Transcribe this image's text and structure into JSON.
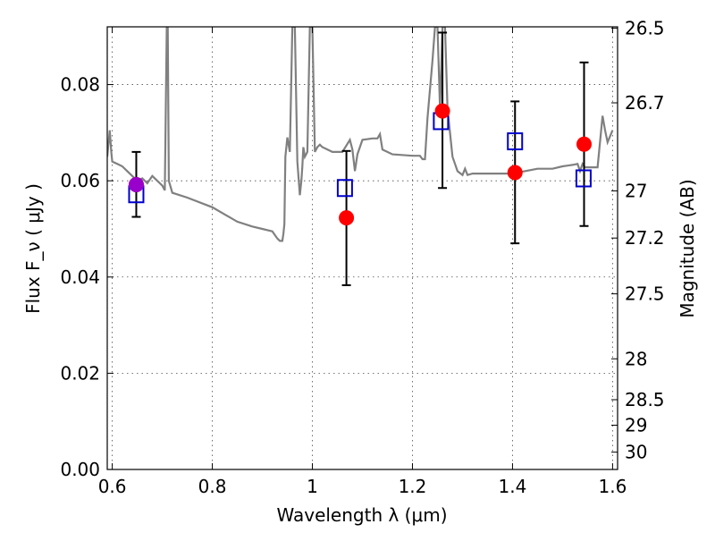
{
  "chart_data": {
    "type": "scatter",
    "title": "",
    "xlabel": "Wavelength  λ (μm)",
    "ylabel": "Flux  F_ν  ( μJy )",
    "ylabel_right": "Magnitude (AB)",
    "xlim": [
      0.59,
      1.61
    ],
    "ylim": [
      0.0,
      0.092
    ],
    "grid": true,
    "xticks": [
      0.6,
      0.8,
      1.0,
      1.2,
      1.4,
      1.6
    ],
    "xtick_labels": [
      "0.6",
      "0.8",
      "1",
      "1.2",
      "1.4",
      "1.6"
    ],
    "yticks": [
      0.0,
      0.02,
      0.04,
      0.06,
      0.08
    ],
    "ytick_labels": [
      "0.00",
      "0.02",
      "0.04",
      "0.06",
      "0.08"
    ],
    "right_ticks": [
      {
        "flux": 0.0917,
        "label": "26.5"
      },
      {
        "flux": 0.0762,
        "label": "26.7"
      },
      {
        "flux": 0.0579,
        "label": "27"
      },
      {
        "flux": 0.0481,
        "label": "27.2"
      },
      {
        "flux": 0.0365,
        "label": "27.5"
      },
      {
        "flux": 0.023,
        "label": "28"
      },
      {
        "flux": 0.0145,
        "label": "28.5"
      },
      {
        "flux": 0.0092,
        "label": "29"
      },
      {
        "flux": 0.0036,
        "label": "30"
      }
    ],
    "model_spectrum": {
      "color": "#808080",
      "x": [
        0.59,
        0.595,
        0.598,
        0.6,
        0.61,
        0.62,
        0.63,
        0.64,
        0.65,
        0.66,
        0.67,
        0.68,
        0.69,
        0.7,
        0.705,
        0.709,
        0.711,
        0.713,
        0.72,
        0.75,
        0.8,
        0.85,
        0.88,
        0.9,
        0.92,
        0.93,
        0.935,
        0.94,
        0.942,
        0.944,
        0.946,
        0.95,
        0.955,
        0.96,
        0.965,
        0.97,
        0.975,
        0.978,
        0.98,
        0.982,
        0.985,
        0.99,
        0.995,
        1.0,
        1.005,
        1.01,
        1.015,
        1.02,
        1.04,
        1.06,
        1.075,
        1.08,
        1.085,
        1.09,
        1.1,
        1.12,
        1.13,
        1.135,
        1.14,
        1.16,
        1.2,
        1.215,
        1.22,
        1.225,
        1.23,
        1.24,
        1.245,
        1.25,
        1.255,
        1.26,
        1.265,
        1.27,
        1.28,
        1.29,
        1.3,
        1.305,
        1.31,
        1.32,
        1.35,
        1.4,
        1.45,
        1.48,
        1.5,
        1.52,
        1.53,
        1.535,
        1.54,
        1.545,
        1.55,
        1.57,
        1.58,
        1.585,
        1.59,
        1.6
      ],
      "y": [
        0.065,
        0.0705,
        0.066,
        0.064,
        0.0635,
        0.063,
        0.062,
        0.061,
        0.06,
        0.0605,
        0.0595,
        0.061,
        0.06,
        0.059,
        0.058,
        0.092,
        0.092,
        0.06,
        0.0575,
        0.0565,
        0.0545,
        0.0515,
        0.0505,
        0.05,
        0.0495,
        0.048,
        0.0475,
        0.0475,
        0.049,
        0.051,
        0.065,
        0.069,
        0.066,
        0.092,
        0.092,
        0.064,
        0.057,
        0.06,
        0.063,
        0.067,
        0.065,
        0.066,
        0.092,
        0.092,
        0.066,
        0.067,
        0.0675,
        0.067,
        0.066,
        0.066,
        0.0685,
        0.0665,
        0.062,
        0.0655,
        0.0685,
        0.0688,
        0.0688,
        0.0697,
        0.0665,
        0.0655,
        0.0652,
        0.0652,
        0.0645,
        0.0645,
        0.073,
        0.085,
        0.092,
        0.092,
        0.075,
        0.092,
        0.092,
        0.075,
        0.065,
        0.062,
        0.0612,
        0.0625,
        0.0612,
        0.0615,
        0.0615,
        0.0615,
        0.0625,
        0.0625,
        0.063,
        0.0633,
        0.0635,
        0.062,
        0.0635,
        0.0628,
        0.0628,
        0.0628,
        0.0735,
        0.0705,
        0.068,
        0.0705
      ]
    },
    "series": [
      {
        "marker": "square-open",
        "color": "#0000cc",
        "x": [
          0.648,
          1.065,
          1.257,
          1.405,
          1.542
        ],
        "y": [
          0.0572,
          0.0585,
          0.0724,
          0.0682,
          0.0605
        ]
      },
      {
        "marker": "circle",
        "color": "#ff0000",
        "x": [
          0.648,
          1.068,
          1.26,
          1.405,
          1.543
        ],
        "y": [
          0.0592,
          0.0523,
          0.0745,
          0.0617,
          0.0676
        ],
        "yerr_low": [
          0.0525,
          0.0383,
          0.0585,
          0.047,
          0.0506
        ],
        "yerr_high": [
          0.066,
          0.0662,
          0.0908,
          0.0765,
          0.0846
        ]
      },
      {
        "marker": "circle",
        "color": "#9900cc",
        "x": [
          0.648
        ],
        "y": [
          0.0592
        ]
      }
    ]
  }
}
